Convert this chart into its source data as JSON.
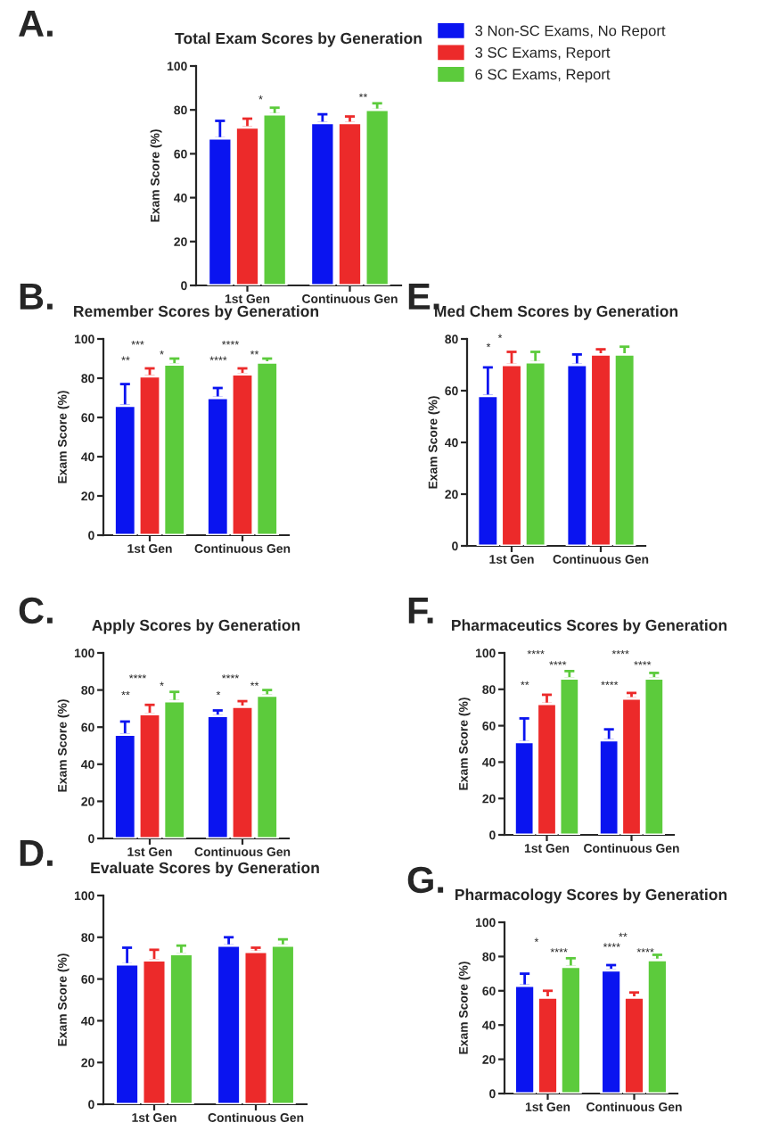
{
  "chart_data": [
    {
      "type": "bar",
      "title": "Total Exam Scores by Generation",
      "ylabel": "Exam Score (%)",
      "categories": [
        "1st Gen",
        "Continuous Gen"
      ],
      "ylim": [
        0,
        100
      ],
      "yticks": [
        0,
        20,
        40,
        60,
        80,
        100
      ],
      "legend": "right",
      "grid": false,
      "series": [
        {
          "name": "3 Non-SC Exams, No Report",
          "color": "#0a14f0",
          "values": [
            67,
            74
          ],
          "errors": [
            [
              67,
              75
            ],
            [
              74,
              78
            ]
          ]
        },
        {
          "name": "3 SC Exams, Report",
          "color": "#ec2a2a",
          "values": [
            72,
            74
          ],
          "errors": [
            [
              72,
              76
            ],
            [
              74,
              77
            ]
          ]
        },
        {
          "name": "6 SC Exams, Report",
          "color": "#5ccb3c",
          "values": [
            78,
            80
          ],
          "errors": [
            [
              78,
              81
            ],
            [
              80,
              83
            ]
          ]
        }
      ],
      "annotations": [
        "A.",
        "*",
        "**"
      ]
    },
    {
      "type": "bar",
      "title": "Remember Scores by Generation",
      "ylabel": "Exam Score (%)",
      "categories": [
        "1st Gen",
        "Continuous Gen"
      ],
      "ylim": [
        0,
        100
      ],
      "yticks": [
        0,
        20,
        40,
        60,
        80,
        100
      ],
      "grid": false,
      "series": [
        {
          "color": "#0a14f0",
          "values": [
            66,
            70
          ],
          "errors": [
            [
              66,
              77
            ],
            [
              70,
              75
            ]
          ]
        },
        {
          "color": "#ec2a2a",
          "values": [
            81,
            82
          ],
          "errors": [
            [
              81,
              85
            ],
            [
              82,
              85
            ]
          ]
        },
        {
          "color": "#5ccb3c",
          "values": [
            87,
            88
          ],
          "errors": [
            [
              87,
              90
            ],
            [
              88,
              90
            ]
          ]
        }
      ],
      "annotations": [
        "B.",
        "***",
        "**",
        "*",
        "****",
        "****",
        "**"
      ]
    },
    {
      "type": "bar",
      "title": "Med Chem Scores by Generation",
      "ylabel": "Exam Score (%)",
      "categories": [
        "1st Gen",
        "Continuous Gen"
      ],
      "ylim": [
        0,
        80
      ],
      "yticks": [
        0,
        20,
        40,
        60,
        80
      ],
      "grid": false,
      "series": [
        {
          "color": "#0a14f0",
          "values": [
            58,
            70
          ],
          "errors": [
            [
              58,
              69
            ],
            [
              70,
              74
            ]
          ]
        },
        {
          "color": "#ec2a2a",
          "values": [
            70,
            74
          ],
          "errors": [
            [
              70,
              75
            ],
            [
              74,
              76
            ]
          ]
        },
        {
          "color": "#5ccb3c",
          "values": [
            71,
            74
          ],
          "errors": [
            [
              71,
              75
            ],
            [
              74,
              77
            ]
          ]
        }
      ],
      "annotations": [
        "E.",
        "*",
        "*"
      ]
    },
    {
      "type": "bar",
      "title": "Apply Scores by Generation",
      "ylabel": "Exam Score (%)",
      "categories": [
        "1st Gen",
        "Continuous Gen"
      ],
      "ylim": [
        0,
        100
      ],
      "yticks": [
        0,
        20,
        40,
        60,
        80,
        100
      ],
      "grid": false,
      "series": [
        {
          "color": "#0a14f0",
          "values": [
            56,
            66
          ],
          "errors": [
            [
              56,
              63
            ],
            [
              66,
              69
            ]
          ]
        },
        {
          "color": "#ec2a2a",
          "values": [
            67,
            71
          ],
          "errors": [
            [
              67,
              72
            ],
            [
              71,
              74
            ]
          ]
        },
        {
          "color": "#5ccb3c",
          "values": [
            74,
            77
          ],
          "errors": [
            [
              74,
              79
            ],
            [
              77,
              80
            ]
          ]
        }
      ],
      "annotations": [
        "C.",
        "****",
        "**",
        "*",
        "****",
        "*",
        "**"
      ]
    },
    {
      "type": "bar",
      "title": "Pharmaceutics Scores by Generation",
      "ylabel": "Exam Score (%)",
      "categories": [
        "1st Gen",
        "Continuous Gen"
      ],
      "ylim": [
        0,
        100
      ],
      "yticks": [
        0,
        20,
        40,
        60,
        80,
        100
      ],
      "grid": false,
      "series": [
        {
          "color": "#0a14f0",
          "values": [
            51,
            52
          ],
          "errors": [
            [
              51,
              64
            ],
            [
              52,
              58
            ]
          ]
        },
        {
          "color": "#ec2a2a",
          "values": [
            72,
            75
          ],
          "errors": [
            [
              72,
              77
            ],
            [
              75,
              78
            ]
          ]
        },
        {
          "color": "#5ccb3c",
          "values": [
            86,
            86
          ],
          "errors": [
            [
              86,
              90
            ],
            [
              86,
              89
            ]
          ]
        }
      ],
      "annotations": [
        "F.",
        "****",
        "**",
        "****",
        "****",
        "****",
        "****"
      ]
    },
    {
      "type": "bar",
      "title": "Evaluate Scores by Generation",
      "ylabel": "Exam Score (%)",
      "categories": [
        "1st Gen",
        "Continuous Gen"
      ],
      "ylim": [
        0,
        100
      ],
      "yticks": [
        0,
        20,
        40,
        60,
        80,
        100
      ],
      "grid": false,
      "series": [
        {
          "color": "#0a14f0",
          "values": [
            67,
            76
          ],
          "errors": [
            [
              67,
              75
            ],
            [
              76,
              80
            ]
          ]
        },
        {
          "color": "#ec2a2a",
          "values": [
            69,
            73
          ],
          "errors": [
            [
              69,
              74
            ],
            [
              73,
              75
            ]
          ]
        },
        {
          "color": "#5ccb3c",
          "values": [
            72,
            76
          ],
          "errors": [
            [
              72,
              76
            ],
            [
              76,
              79
            ]
          ]
        }
      ],
      "annotations": [
        "D."
      ]
    },
    {
      "type": "bar",
      "title": "Pharmacology Scores by Generation",
      "ylabel": "Exam Score (%)",
      "categories": [
        "1st Gen",
        "Continuous Gen"
      ],
      "ylim": [
        0,
        100
      ],
      "yticks": [
        0,
        20,
        40,
        60,
        80,
        100
      ],
      "grid": false,
      "series": [
        {
          "color": "#0a14f0",
          "values": [
            63,
            72
          ],
          "errors": [
            [
              63,
              70
            ],
            [
              72,
              75
            ]
          ]
        },
        {
          "color": "#ec2a2a",
          "values": [
            56,
            56
          ],
          "errors": [
            [
              56,
              60
            ],
            [
              56,
              59
            ]
          ]
        },
        {
          "color": "#5ccb3c",
          "values": [
            74,
            78
          ],
          "errors": [
            [
              74,
              79
            ],
            [
              78,
              81
            ]
          ]
        }
      ],
      "annotations": [
        "G.",
        "*",
        "****",
        "**",
        "****",
        "****"
      ]
    }
  ]
}
